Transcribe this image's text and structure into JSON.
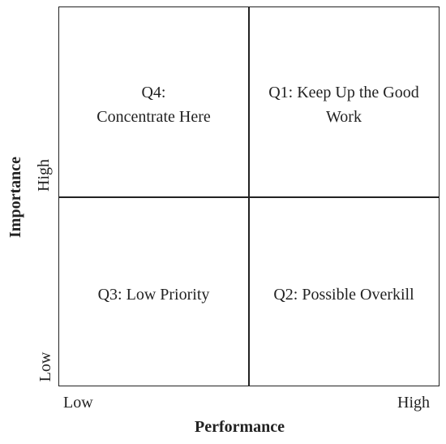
{
  "quadrants": {
    "top_left": {
      "line1": "Q4:",
      "line2": "Concentrate Here"
    },
    "top_right": {
      "line1": "Q1: Keep Up the Good",
      "line2": "Work"
    },
    "bottom_left": {
      "label": "Q3: Low Priority"
    },
    "bottom_right": {
      "label": "Q2: Possible Overkill"
    }
  },
  "x_axis": {
    "title": "Performance",
    "low_label": "Low",
    "high_label": "High"
  },
  "y_axis": {
    "title": "Importance",
    "low_label": "Low",
    "high_label": "High"
  }
}
